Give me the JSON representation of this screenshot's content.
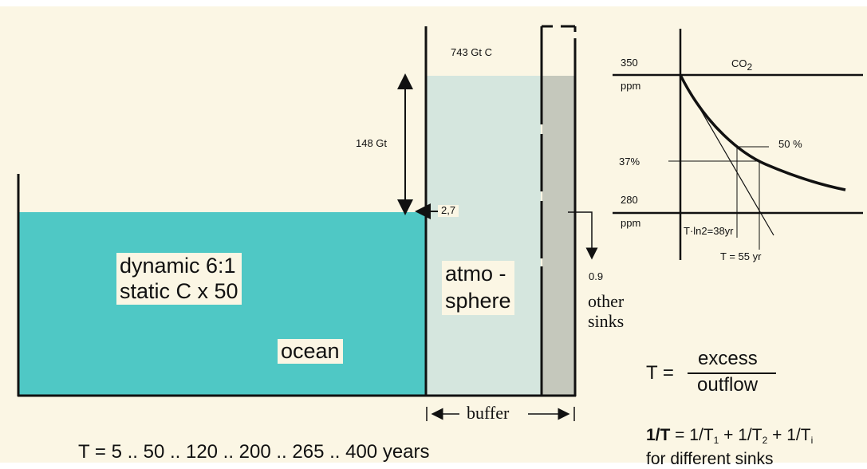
{
  "diagram": {
    "atm_top_label": "743 Gt C",
    "excess_label": "148 Gt",
    "flux_label": "2,7",
    "ocean_box_line1": "dynamic 6:1",
    "ocean_box_line2": "static C x 50",
    "ocean_label": "ocean",
    "atmosphere_line1": "atmo -",
    "atmosphere_line2": "sphere",
    "other_sinks_value": "0.9",
    "other_sinks_line1": "other",
    "other_sinks_line2": "sinks",
    "buffer_label": "buffer",
    "timescales": "T = 5 .. 50 .. 120 .. 200 .. 265 .. 400 years"
  },
  "decay_plot": {
    "y_top_value": "350",
    "y_top_unit": "ppm",
    "curve_label": "CO",
    "curve_label_sub": "2",
    "half_label": "50 %",
    "e_label": "37%",
    "y_bottom_value": "280",
    "y_bottom_unit": "ppm",
    "t_ln2_label": "T·ln2=38yr",
    "t_label": "T = 55 yr"
  },
  "formula": {
    "lhs": "T =",
    "numerator": "excess",
    "denominator": "outflow",
    "sum_lhs": "1/T",
    "sum_rest_1": " = 1/T",
    "sum_sub_1": "1",
    "sum_rest_2": " + 1/T",
    "sum_sub_2": "2",
    "sum_rest_3": " + 1/T",
    "sum_sub_3": "i",
    "caption": "for different sinks"
  },
  "colors": {
    "background": "#fbf6e4",
    "ocean": "#4fc8c5",
    "atmosphere": "#d5e6de",
    "buffer_column": "#c5c8bc",
    "line": "#111111"
  }
}
